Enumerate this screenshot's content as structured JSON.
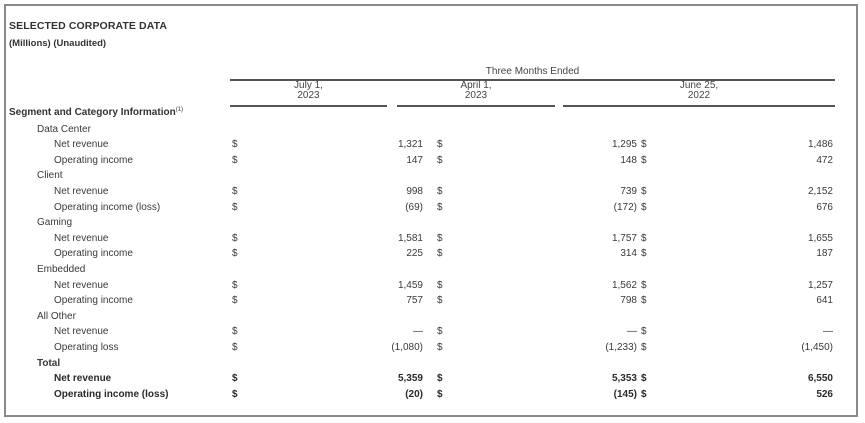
{
  "document": {
    "title": "SELECTED CORPORATE DATA",
    "subtitle": "(Millions) (Unaudited)",
    "period_header": "Three Months Ended",
    "columns": [
      {
        "line1": "July 1,",
        "line2": "2023"
      },
      {
        "line1": "April 1,",
        "line2": "2023"
      },
      {
        "line1": "June 25,",
        "line2": "2022"
      }
    ],
    "section_header": "Segment and Category Information",
    "section_footnote": "(1)",
    "currency_symbol": "$",
    "rows": [
      {
        "type": "cat",
        "label": "Data Center"
      },
      {
        "type": "item",
        "label": "Net revenue",
        "values": [
          "1,321",
          "1,295",
          "1,486"
        ]
      },
      {
        "type": "item",
        "label": "Operating income",
        "values": [
          "147",
          "148",
          "472"
        ]
      },
      {
        "type": "cat",
        "label": "Client"
      },
      {
        "type": "item",
        "label": "Net revenue",
        "values": [
          "998",
          "739",
          "2,152"
        ]
      },
      {
        "type": "item",
        "label": "Operating income (loss)",
        "values": [
          "(69)",
          "(172)",
          "676"
        ]
      },
      {
        "type": "cat",
        "label": "Gaming"
      },
      {
        "type": "item",
        "label": "Net revenue",
        "values": [
          "1,581",
          "1,757",
          "1,655"
        ]
      },
      {
        "type": "item",
        "label": "Operating income",
        "values": [
          "225",
          "314",
          "187"
        ]
      },
      {
        "type": "cat",
        "label": "Embedded"
      },
      {
        "type": "item",
        "label": "Net revenue",
        "values": [
          "1,459",
          "1,562",
          "1,257"
        ]
      },
      {
        "type": "item",
        "label": "Operating income",
        "values": [
          "757",
          "798",
          "641"
        ]
      },
      {
        "type": "cat",
        "label": "All Other"
      },
      {
        "type": "item",
        "label": "Net revenue",
        "values": [
          "—",
          "—",
          "—"
        ]
      },
      {
        "type": "item",
        "label": "Operating loss",
        "values": [
          "(1,080)",
          "(1,233)",
          "(1,450)"
        ]
      },
      {
        "type": "total",
        "label": "Total"
      },
      {
        "type": "titem",
        "label": "Net revenue",
        "values": [
          "5,359",
          "5,353",
          "6,550"
        ]
      },
      {
        "type": "titem",
        "label": "Operating income (loss)",
        "values": [
          "(20)",
          "(145)",
          "526"
        ]
      }
    ]
  }
}
